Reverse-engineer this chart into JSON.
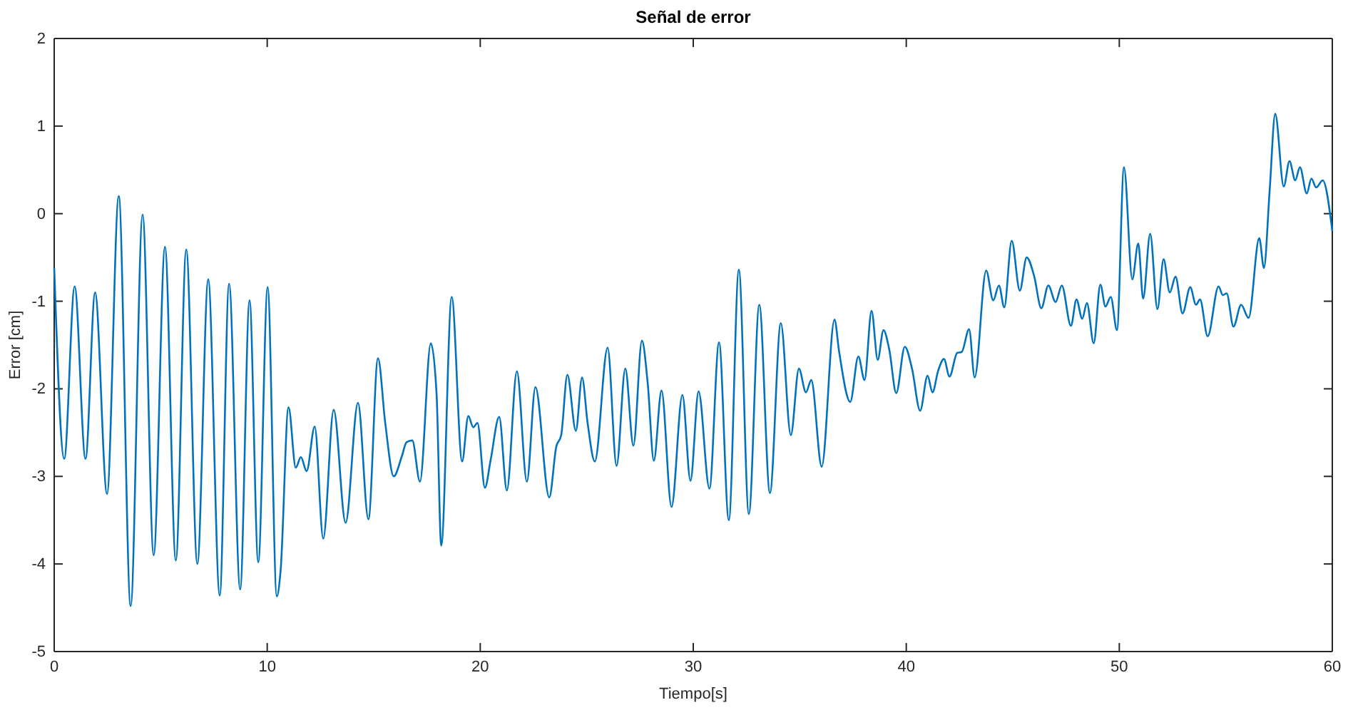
{
  "chart_data": {
    "type": "line",
    "title": "Señal de error",
    "xlabel": "Tiempo[s]",
    "ylabel": "Error [cm]",
    "xlim": [
      0,
      60
    ],
    "xticks": [
      0,
      10,
      20,
      30,
      40,
      50,
      60
    ],
    "ylim": [
      -5,
      2
    ],
    "yticks": [
      -5,
      -4,
      -3,
      -2,
      -1,
      0,
      1,
      2
    ],
    "grid": false,
    "marker": "none",
    "line_style": "solid",
    "series": [
      {
        "color": "#0072bd",
        "x": [
          0,
          0.47,
          0.96,
          1.47,
          1.92,
          2.48,
          3.03,
          3.59,
          4.15,
          4.67,
          5.2,
          5.71,
          6.2,
          6.72,
          7.23,
          7.77,
          8.21,
          8.73,
          9.17,
          9.58,
          10.02,
          10.45,
          10.63,
          11.0,
          11.34,
          11.58,
          11.85,
          12.23,
          12.63,
          13.12,
          13.68,
          14.26,
          14.75,
          15.2,
          15.54,
          15.94,
          16.32,
          16.54,
          16.81,
          17.17,
          17.68,
          17.95,
          18.17,
          18.66,
          19.15,
          19.44,
          19.67,
          19.87,
          20.22,
          20.49,
          20.89,
          21.25,
          21.72,
          22.19,
          22.59,
          23.24,
          23.57,
          23.8,
          24.09,
          24.49,
          24.78,
          25.04,
          25.38,
          25.98,
          26.4,
          26.81,
          27.19,
          27.59,
          27.86,
          28.15,
          28.51,
          28.98,
          29.49,
          29.87,
          30.25,
          30.76,
          31.21,
          31.67,
          32.14,
          32.61,
          33.1,
          33.6,
          34.11,
          34.58,
          34.96,
          35.29,
          35.54,
          36.03,
          36.63,
          36.85,
          37.37,
          37.75,
          38.04,
          38.37,
          38.66,
          38.93,
          39.2,
          39.53,
          39.93,
          40.27,
          40.65,
          41.0,
          41.23,
          41.5,
          41.77,
          42.03,
          42.39,
          42.6,
          42.95,
          43.21,
          43.75,
          44.08,
          44.35,
          44.6,
          44.95,
          45.33,
          45.65,
          46.0,
          46.34,
          46.67,
          47.01,
          47.3,
          47.73,
          47.99,
          48.26,
          48.48,
          48.8,
          49.11,
          49.35,
          49.6,
          49.89,
          50.22,
          50.61,
          50.89,
          51.12,
          51.45,
          51.79,
          52.08,
          52.37,
          52.64,
          52.97,
          53.33,
          53.6,
          53.79,
          54.15,
          54.66,
          54.86,
          55.04,
          55.36,
          55.72,
          56.07,
          56.57,
          56.79,
          57.06,
          57.32,
          57.72,
          57.99,
          58.26,
          58.48,
          58.8,
          59.02,
          59.24,
          59.55,
          60
        ],
        "values": [
          -0.62,
          -2.8,
          -0.83,
          -2.8,
          -0.9,
          -3.2,
          0.2,
          -4.48,
          -0.01,
          -3.9,
          -0.38,
          -3.96,
          -0.41,
          -4.0,
          -0.75,
          -4.36,
          -0.8,
          -4.29,
          -0.99,
          -3.98,
          -0.84,
          -4.37,
          -4.07,
          -2.21,
          -2.9,
          -2.78,
          -2.94,
          -2.43,
          -3.71,
          -2.24,
          -3.53,
          -2.16,
          -3.49,
          -1.65,
          -2.39,
          -3.0,
          -2.77,
          -2.61,
          -2.59,
          -3.06,
          -1.48,
          -2.06,
          -3.79,
          -0.95,
          -2.83,
          -2.31,
          -2.44,
          -2.39,
          -3.13,
          -2.81,
          -2.32,
          -3.16,
          -1.8,
          -3.06,
          -1.98,
          -3.24,
          -2.66,
          -2.53,
          -1.84,
          -2.48,
          -1.87,
          -2.39,
          -2.83,
          -1.53,
          -2.88,
          -1.77,
          -2.65,
          -1.45,
          -1.93,
          -2.82,
          -2.02,
          -3.35,
          -2.07,
          -3.05,
          -2.03,
          -3.14,
          -1.47,
          -3.5,
          -0.64,
          -3.43,
          -1.04,
          -3.19,
          -1.25,
          -2.53,
          -1.77,
          -2.04,
          -1.9,
          -2.89,
          -1.21,
          -1.58,
          -2.15,
          -1.63,
          -1.9,
          -1.11,
          -1.67,
          -1.33,
          -1.55,
          -2.05,
          -1.52,
          -1.77,
          -2.25,
          -1.85,
          -2.04,
          -1.79,
          -1.66,
          -1.86,
          -1.59,
          -1.58,
          -1.32,
          -1.87,
          -0.65,
          -0.99,
          -0.82,
          -1.07,
          -0.31,
          -0.88,
          -0.5,
          -0.71,
          -1.08,
          -0.82,
          -1.01,
          -0.82,
          -1.28,
          -0.98,
          -1.2,
          -1.02,
          -1.48,
          -0.81,
          -1.06,
          -0.95,
          -1.33,
          0.53,
          -0.75,
          -0.34,
          -0.97,
          -0.23,
          -1.09,
          -0.52,
          -0.9,
          -0.72,
          -1.14,
          -0.84,
          -1.04,
          -0.98,
          -1.4,
          -0.83,
          -0.93,
          -0.91,
          -1.29,
          -1.04,
          -1.19,
          -0.28,
          -0.62,
          0.27,
          1.14,
          0.31,
          0.6,
          0.38,
          0.53,
          0.23,
          0.4,
          0.3,
          0.38,
          -0.2
        ]
      }
    ]
  }
}
